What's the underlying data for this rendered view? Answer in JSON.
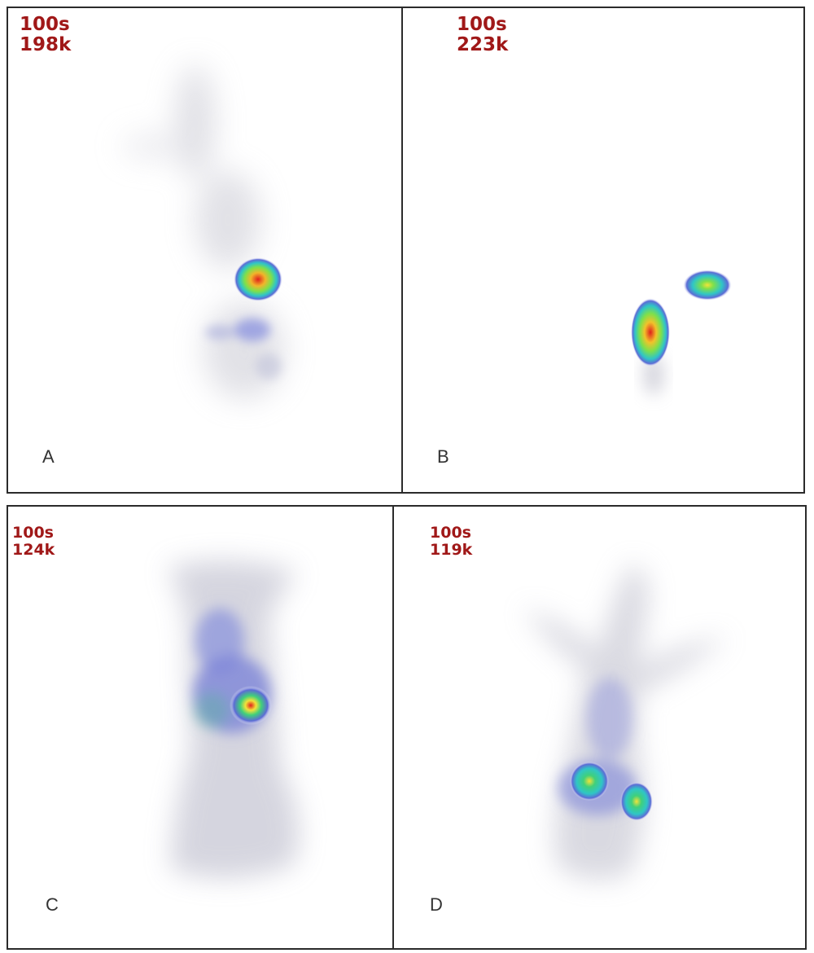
{
  "panels": [
    {
      "letter": "A",
      "time": "100s",
      "counts": "198k"
    },
    {
      "letter": "B",
      "time": "100s",
      "counts": "223k"
    },
    {
      "letter": "C",
      "time": "100s",
      "counts": "124k"
    },
    {
      "letter": "D",
      "time": "100s",
      "counts": "119k"
    }
  ],
  "colors": {
    "count_label": "#a01818",
    "border": "#2b2b2b",
    "low_activity": "#b6b6c4",
    "mid_activity": "#5d6bd6",
    "high_activity": "#40d07a",
    "peak_activity": "#f2e23a",
    "hot_spot": "#e0201c"
  }
}
